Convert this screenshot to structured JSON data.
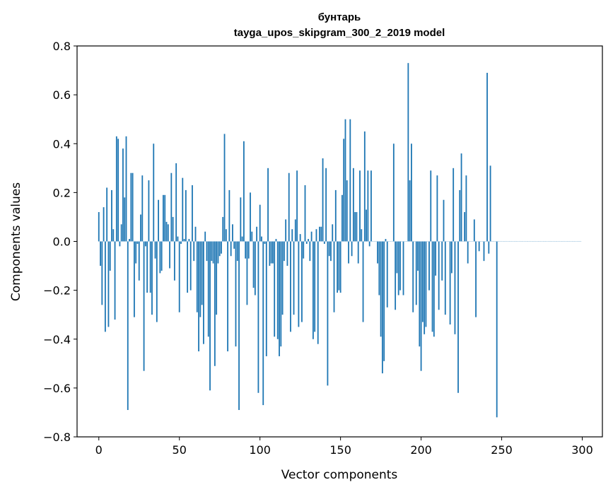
{
  "chart_data": {
    "type": "bar",
    "title_line1": "бунтарь",
    "title_line2": "tayga_upos_skipgram_300_2_2019 model",
    "xlabel": "Vector components",
    "ylabel": "Components values",
    "xlim": [
      -13.5,
      312.5
    ],
    "ylim": [
      -0.8,
      0.8
    ],
    "xticks": [
      0,
      50,
      100,
      150,
      200,
      250,
      300
    ],
    "xtick_labels": [
      "0",
      "50",
      "100",
      "150",
      "200",
      "250",
      "300"
    ],
    "yticks": [
      -0.8,
      -0.6,
      -0.4,
      -0.2,
      0.0,
      0.2,
      0.4,
      0.6,
      0.8
    ],
    "ytick_labels": [
      "−0.8",
      "−0.6",
      "−0.4",
      "−0.2",
      "0.0",
      "0.2",
      "0.4",
      "0.6",
      "0.8"
    ],
    "bar_color": "#1f77b4",
    "x": [
      0,
      1,
      2,
      3,
      4,
      5,
      6,
      7,
      8,
      9,
      10,
      11,
      12,
      13,
      14,
      15,
      16,
      17,
      18,
      19,
      20,
      21,
      22,
      23,
      24,
      25,
      26,
      27,
      28,
      29,
      30,
      31,
      32,
      33,
      34,
      35,
      36,
      37,
      38,
      39,
      40,
      41,
      42,
      43,
      44,
      45,
      46,
      47,
      48,
      49,
      50,
      51,
      52,
      53,
      54,
      55,
      56,
      57,
      58,
      59,
      60,
      61,
      62,
      63,
      64,
      65,
      66,
      67,
      68,
      69,
      70,
      71,
      72,
      73,
      74,
      75,
      76,
      77,
      78,
      79,
      80,
      81,
      82,
      83,
      84,
      85,
      86,
      87,
      88,
      89,
      90,
      91,
      92,
      93,
      94,
      95,
      96,
      97,
      98,
      99,
      100,
      101,
      102,
      103,
      104,
      105,
      106,
      107,
      108,
      109,
      110,
      111,
      112,
      113,
      114,
      115,
      116,
      117,
      118,
      119,
      120,
      121,
      122,
      123,
      124,
      125,
      126,
      127,
      128,
      129,
      130,
      131,
      132,
      133,
      134,
      135,
      136,
      137,
      138,
      139,
      140,
      141,
      142,
      143,
      144,
      145,
      146,
      147,
      148,
      149,
      150,
      151,
      152,
      153,
      154,
      155,
      156,
      157,
      158,
      159,
      160,
      161,
      162,
      163,
      164,
      165,
      166,
      167,
      168,
      169,
      170,
      171,
      172,
      173,
      174,
      175,
      176,
      177,
      178,
      179,
      180,
      181,
      182,
      183,
      184,
      185,
      186,
      187,
      188,
      189,
      190,
      191,
      192,
      193,
      194,
      195,
      196,
      197,
      198,
      199,
      200,
      201,
      202,
      203,
      204,
      205,
      206,
      207,
      208,
      209,
      210,
      211,
      212,
      213,
      214,
      215,
      216,
      217,
      218,
      219,
      220,
      221,
      222,
      223,
      224,
      225,
      226,
      227,
      228,
      229,
      230,
      231,
      232,
      233,
      234,
      235,
      236,
      237,
      238,
      239,
      240,
      241,
      242,
      243,
      244,
      245,
      246,
      247,
      248,
      249,
      250,
      251,
      252,
      253,
      254,
      255,
      256,
      257,
      258,
      259,
      260,
      261,
      262,
      263,
      264,
      265,
      266,
      267,
      268,
      269,
      270,
      271,
      272,
      273,
      274,
      275,
      276,
      277,
      278,
      279,
      280,
      281,
      282,
      283,
      284,
      285,
      286,
      287,
      288,
      289,
      290,
      291,
      292,
      293,
      294,
      295,
      296,
      297,
      298,
      299
    ],
    "values": [
      0.12,
      -0.1,
      -0.26,
      0.14,
      -0.37,
      0.22,
      -0.35,
      -0.12,
      0.21,
      0.05,
      -0.32,
      0.43,
      0.42,
      -0.02,
      0.07,
      0.38,
      0.18,
      0.43,
      -0.69,
      0.01,
      0.28,
      0.28,
      -0.31,
      -0.09,
      -0.01,
      -0.16,
      0.11,
      0.27,
      -0.53,
      -0.02,
      -0.21,
      0.25,
      -0.21,
      -0.3,
      0.4,
      -0.07,
      -0.33,
      0.17,
      -0.13,
      -0.12,
      0.19,
      0.19,
      0.08,
      0.07,
      -0.11,
      0.28,
      0.1,
      -0.16,
      0.32,
      0.02,
      -0.29,
      -0.01,
      0.26,
      0.01,
      0.21,
      -0.21,
      0.01,
      -0.2,
      0.23,
      -0.08,
      0.06,
      -0.29,
      -0.45,
      -0.31,
      -0.26,
      -0.42,
      0.04,
      -0.08,
      -0.39,
      -0.61,
      -0.08,
      -0.09,
      -0.51,
      -0.3,
      -0.09,
      -0.06,
      -0.05,
      0.1,
      0.44,
      0.05,
      -0.45,
      0.21,
      -0.06,
      0.07,
      -0.03,
      -0.43,
      -0.08,
      -0.69,
      0.18,
      0.02,
      0.41,
      -0.07,
      -0.26,
      -0.07,
      0.2,
      0.04,
      -0.19,
      -0.22,
      0.06,
      -0.62,
      0.15,
      0.02,
      -0.67,
      -0.01,
      -0.47,
      0.3,
      -0.1,
      -0.09,
      -0.09,
      -0.39,
      0.01,
      -0.4,
      -0.47,
      -0.43,
      -0.3,
      -0.08,
      0.09,
      -0.1,
      0.28,
      -0.37,
      0.05,
      -0.3,
      0.09,
      0.29,
      -0.35,
      0.03,
      -0.33,
      -0.07,
      0.23,
      -0.01,
      0.01,
      -0.08,
      0.04,
      -0.4,
      -0.37,
      0.05,
      -0.42,
      0.06,
      0.06,
      0.34,
      -0.01,
      0.3,
      -0.59,
      -0.06,
      -0.08,
      0.07,
      -0.29,
      0.21,
      -0.21,
      -0.2,
      -0.21,
      0.19,
      0.42,
      0.5,
      0.25,
      -0.09,
      0.5,
      -0.06,
      0.3,
      0.12,
      0.12,
      -0.09,
      0.29,
      0.05,
      -0.33,
      0.45,
      0.13,
      0.29,
      -0.02,
      0.29,
      0.0,
      0.0,
      0.0,
      -0.09,
      -0.22,
      -0.39,
      -0.54,
      -0.49,
      0.01,
      -0.27,
      0.0,
      0.0,
      0.0,
      0.4,
      -0.28,
      -0.13,
      -0.22,
      -0.2,
      0.0,
      -0.22,
      0.0,
      0.0,
      0.73,
      0.25,
      0.4,
      -0.29,
      0.0,
      -0.26,
      -0.12,
      -0.43,
      -0.53,
      -0.33,
      -0.38,
      -0.35,
      0.0,
      -0.2,
      0.29,
      -0.37,
      -0.39,
      -0.14,
      0.27,
      -0.28,
      0.0,
      -0.16,
      0.17,
      -0.3,
      0.0,
      0.0,
      -0.34,
      -0.13,
      0.3,
      -0.38,
      0.0,
      -0.62,
      0.21,
      0.36,
      0.0,
      0.12,
      0.27,
      -0.09,
      0.0,
      0.0,
      0.0,
      0.09,
      -0.31,
      0.0,
      -0.04,
      0.0,
      0.0,
      -0.08,
      0.0,
      0.69,
      -0.05,
      0.31,
      0.0,
      0.0,
      0.0,
      -0.72,
      0.0,
      0.0,
      0.0,
      0.0,
      0.0,
      0.0,
      0.0,
      0.0,
      0.0,
      0.0,
      0.0,
      0.0,
      0.0,
      0.0,
      0.0,
      0.0,
      0.0,
      0.0,
      0.0,
      0.0,
      0.0,
      0.0,
      0.0,
      0.0,
      0.0,
      0.0,
      0.0,
      0.0,
      0.0,
      0.0,
      0.0,
      0.0,
      0.0,
      0.0,
      0.0,
      0.0,
      0.0,
      0.0,
      0.0,
      0.0,
      0.0,
      0.0,
      0.0,
      0.0,
      0.0,
      0.0,
      0.0,
      0.0,
      0.0,
      0.0,
      0.0,
      0.0
    ]
  }
}
